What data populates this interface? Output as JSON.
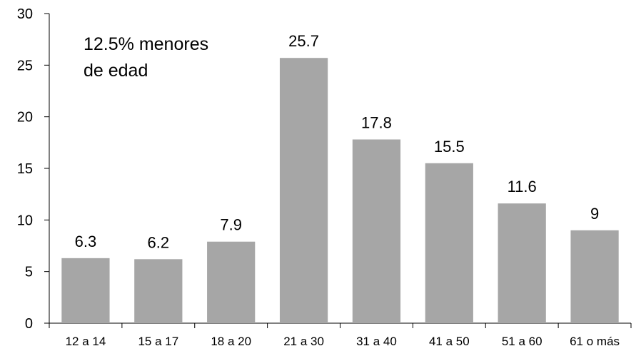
{
  "chart_data": {
    "type": "bar",
    "categories": [
      "12 a 14",
      "15 a 17",
      "18 a 20",
      "21 a 30",
      "31 a 40",
      "41 a 50",
      "51 a 60",
      "61 o más"
    ],
    "values": [
      6.3,
      6.2,
      7.9,
      25.7,
      17.8,
      15.5,
      11.6,
      9
    ],
    "data_labels": [
      "6.3",
      "6.2",
      "7.9",
      "25.7",
      "17.8",
      "15.5",
      "11.6",
      "9"
    ],
    "ylim": [
      0,
      30
    ],
    "yticks": [
      0,
      5,
      10,
      15,
      20,
      25,
      30
    ],
    "bar_color": "#a6a6a6",
    "grid": false,
    "annotation": [
      "12.5% menores",
      "de edad"
    ]
  }
}
